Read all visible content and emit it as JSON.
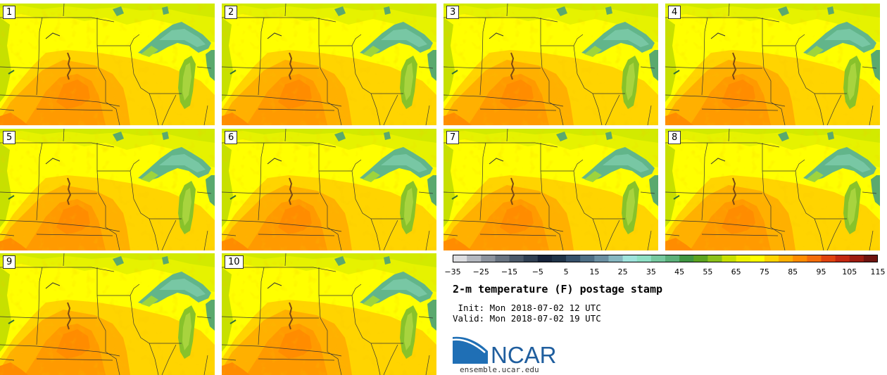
{
  "panels": [
    {
      "label": "1"
    },
    {
      "label": "2"
    },
    {
      "label": "3"
    },
    {
      "label": "4"
    },
    {
      "label": "5"
    },
    {
      "label": "6"
    },
    {
      "label": "7"
    },
    {
      "label": "8"
    },
    {
      "label": "9"
    },
    {
      "label": "10"
    }
  ],
  "colorbar": {
    "colors": [
      "#dcdde0",
      "#b4b8bf",
      "#8c939d",
      "#687380",
      "#4a5868",
      "#2f3f52",
      "#16233a",
      "#1f3348",
      "#35506a",
      "#4d6e85",
      "#6a8fa2",
      "#86b7c1",
      "#9ee3dc",
      "#8ee0c5",
      "#76c99f",
      "#5bb17a",
      "#3f9642",
      "#5ca420",
      "#8cc21a",
      "#c7e000",
      "#eef300",
      "#ffff00",
      "#ffd400",
      "#ffb000",
      "#ff8c00",
      "#f46d0a",
      "#e0430e",
      "#c42810",
      "#9e1c10",
      "#6e1410"
    ],
    "tick_labels": [
      "−35",
      "−25",
      "−15",
      "−5",
      "5",
      "15",
      "25",
      "35",
      "45",
      "55",
      "65",
      "75",
      "85",
      "95",
      "105",
      "115"
    ]
  },
  "title": "2-m temperature (F) postage stamp",
  "init_text": " Init: Mon 2018-07-02 12 UTC",
  "valid_text": "Valid: Mon 2018-07-02 19 UTC",
  "logo_text": "NCAR",
  "logo_url": "ensemble.ucar.edu"
}
